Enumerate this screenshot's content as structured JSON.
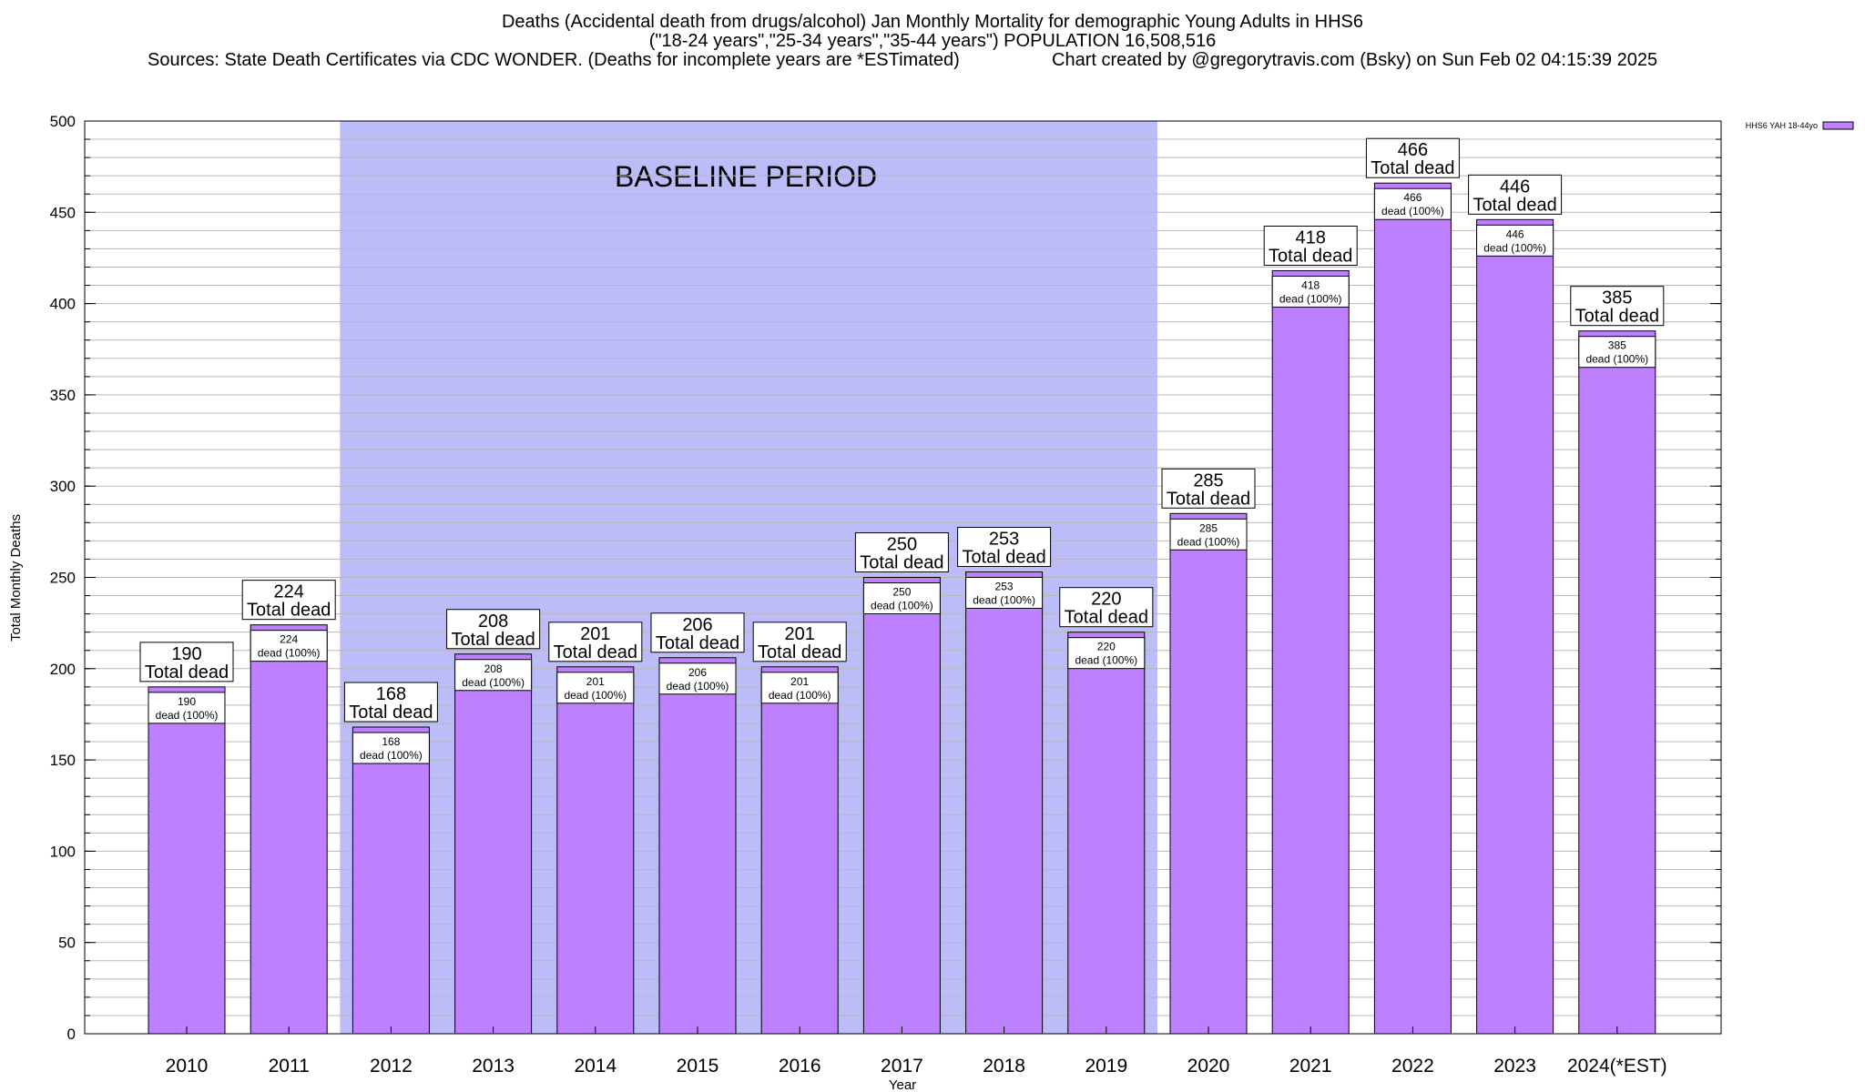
{
  "header": {
    "title_line1": "Deaths (Accidental death from drugs/alcohol) Jan Monthly Mortality for demographic Young Adults in HHS6",
    "title_line2": "(\"18-24 years\",\"25-34 years\",\"35-44 years\") POPULATION 16,508,516",
    "sources": "Sources: State Death Certificates via CDC WONDER. (Deaths for incomplete years are *ESTimated)",
    "credit": "Chart created by @gregorytravis.com (Bsky) on Sun Feb 02 04:15:39 2025"
  },
  "chart_data": {
    "type": "bar",
    "xlabel": "Year",
    "ylabel": "Total Monthly Deaths",
    "ylim": [
      0,
      500
    ],
    "y_ticks": [
      0,
      50,
      100,
      150,
      200,
      250,
      300,
      350,
      400,
      450,
      500
    ],
    "categories": [
      "2010",
      "2011",
      "2012",
      "2013",
      "2014",
      "2015",
      "2016",
      "2017",
      "2018",
      "2019",
      "2020",
      "2021",
      "2022",
      "2023",
      "2024(*EST)"
    ],
    "series": [
      {
        "name": "HHS6 YAH 18-44yo",
        "color": "#bf80ff",
        "values": [
          190,
          224,
          168,
          208,
          201,
          206,
          201,
          250,
          253,
          220,
          285,
          418,
          466,
          446,
          385
        ]
      }
    ],
    "baseline": {
      "label": "BASELINE PERIOD",
      "start": "2012",
      "end": "2019",
      "color": "#bcbcf9"
    },
    "annotation_top_suffix": "Total dead",
    "annotation_inner_suffix": "dead (100%)",
    "legend_placement": "top-right",
    "grid": true
  }
}
